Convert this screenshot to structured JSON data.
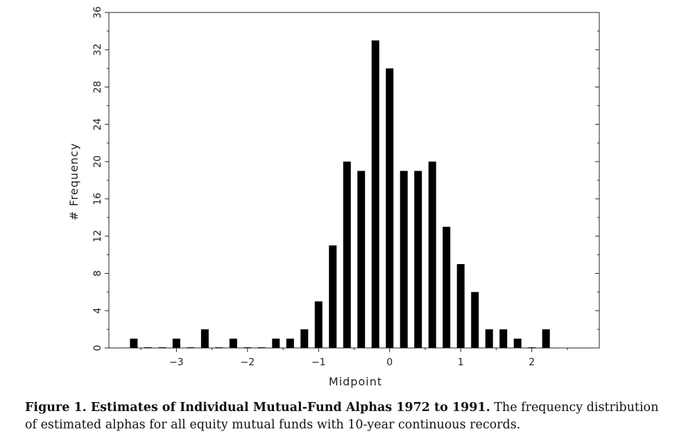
{
  "chart_data": {
    "type": "bar",
    "xlabel": "Midpoint",
    "ylabel": "# Frequency",
    "xlim": [
      -3.95,
      2.95
    ],
    "ylim": [
      0,
      36
    ],
    "x_ticks": [
      -3,
      -2,
      -1,
      0,
      1,
      2
    ],
    "x_tick_labels": [
      "−3",
      "−2",
      "−1",
      "0",
      "1",
      "2"
    ],
    "y_ticks": [
      0,
      4,
      8,
      12,
      16,
      20,
      24,
      28,
      32,
      36
    ],
    "y_tick_labels": [
      "0",
      "4",
      "8",
      "12",
      "16",
      "20",
      "24",
      "28",
      "32",
      "36"
    ],
    "x": [
      -3.6,
      -3.4,
      -3.2,
      -3.0,
      -2.8,
      -2.6,
      -2.4,
      -2.2,
      -2.0,
      -1.8,
      -1.6,
      -1.4,
      -1.2,
      -1.0,
      -0.8,
      -0.6,
      -0.4,
      -0.2,
      0.0,
      0.2,
      0.4,
      0.6,
      0.8,
      1.0,
      1.2,
      1.4,
      1.6,
      1.8,
      2.0,
      2.2
    ],
    "values": [
      1,
      0,
      0,
      1,
      0,
      2,
      0,
      1,
      0,
      0,
      1,
      1,
      2,
      5,
      11,
      20,
      19,
      33,
      30,
      19,
      19,
      20,
      13,
      9,
      6,
      2,
      2,
      1,
      0,
      2
    ],
    "grid": false,
    "legend": "none"
  },
  "caption": {
    "title": "Figure 1. Estimates of Individual Mutual-Fund Alphas 1972 to 1991.",
    "text": " The frequency distribution of estimated alphas for all equity mutual funds with 10-year continuous records."
  }
}
